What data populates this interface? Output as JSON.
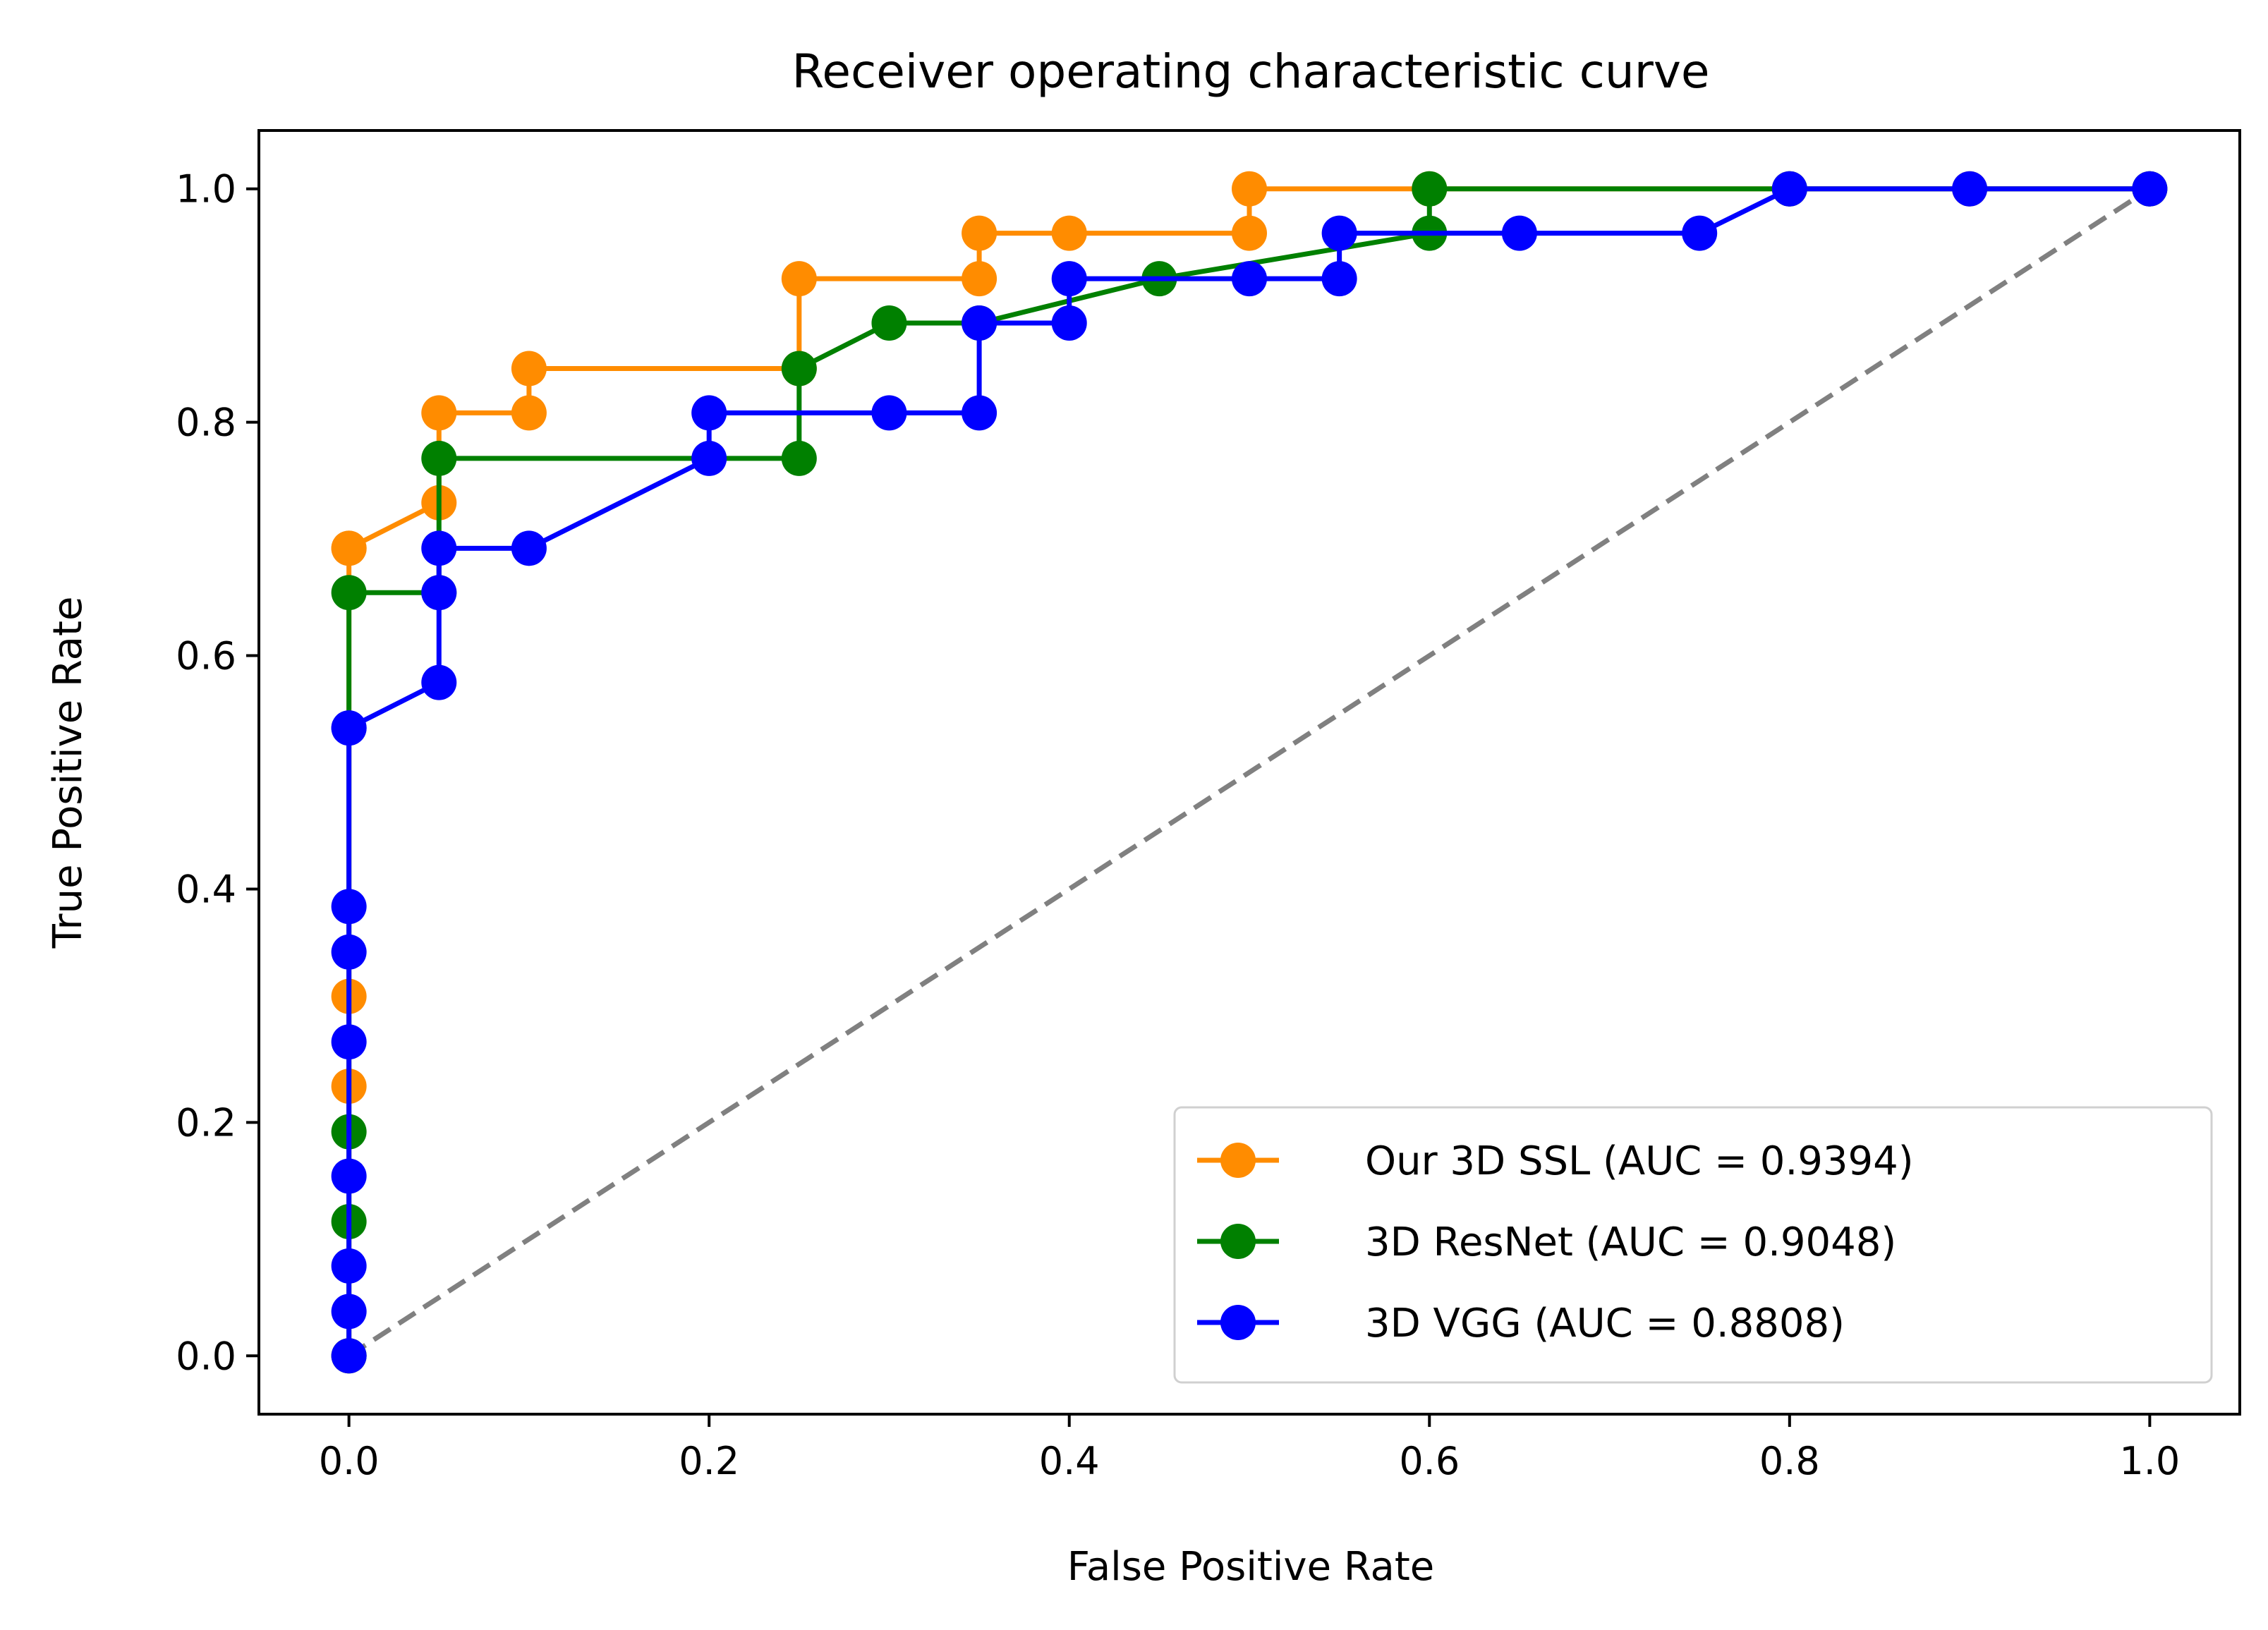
{
  "chart_data": {
    "type": "line",
    "title": "Receiver operating characteristic curve",
    "xlabel": "False Positive Rate",
    "ylabel": "True Positive Rate",
    "xlim": [
      -0.05,
      1.05
    ],
    "ylim": [
      -0.05,
      1.05
    ],
    "xticks": [
      0.0,
      0.2,
      0.4,
      0.6,
      0.8,
      1.0
    ],
    "yticks": [
      0.0,
      0.2,
      0.4,
      0.6,
      0.8,
      1.0
    ],
    "xtick_labels": [
      "0.0",
      "0.2",
      "0.4",
      "0.6",
      "0.8",
      "1.0"
    ],
    "ytick_labels": [
      "0.0",
      "0.2",
      "0.4",
      "0.6",
      "0.8",
      "1.0"
    ],
    "grid": false,
    "legend_position": "bottom-right",
    "diagonal": {
      "x": [
        0,
        1
      ],
      "y": [
        0,
        1
      ],
      "color": "#808080",
      "style": "dashed"
    },
    "series": [
      {
        "name": "Our 3D SSL (AUC = 0.9394)",
        "color": "#ff8c00",
        "x": [
          0,
          0,
          0,
          0,
          0,
          0.05,
          0.05,
          0.1,
          0.1,
          0.25,
          0.25,
          0.35,
          0.35,
          0.4,
          0.5,
          0.5,
          0.6,
          0.8,
          0.9,
          1.0
        ],
        "y": [
          0,
          0.231,
          0.308,
          0.692,
          0.692,
          0.731,
          0.808,
          0.808,
          0.846,
          0.846,
          0.923,
          0.923,
          0.962,
          0.962,
          0.962,
          1.0,
          1.0,
          1.0,
          1.0,
          1.0
        ]
      },
      {
        "name": "3D ResNet (AUC = 0.9048)",
        "color": "#008000",
        "x": [
          0,
          0,
          0,
          0,
          0.05,
          0.05,
          0.25,
          0.25,
          0.3,
          0.35,
          0.45,
          0.6,
          0.6,
          0.8,
          1.0
        ],
        "y": [
          0,
          0.115,
          0.192,
          0.654,
          0.654,
          0.769,
          0.769,
          0.846,
          0.885,
          0.885,
          0.923,
          0.962,
          1.0,
          1.0,
          1.0
        ]
      },
      {
        "name": "3D VGG (AUC = 0.8808)",
        "color": "#0000ff",
        "x": [
          0,
          0,
          0,
          0,
          0,
          0,
          0,
          0,
          0,
          0.05,
          0.05,
          0.05,
          0.1,
          0.2,
          0.2,
          0.3,
          0.35,
          0.35,
          0.4,
          0.4,
          0.5,
          0.55,
          0.55,
          0.65,
          0.75,
          0.8,
          0.9,
          1.0
        ],
        "y": [
          0,
          0.038,
          0.077,
          0.154,
          0.269,
          0.346,
          0.385,
          0.538,
          0.538,
          0.577,
          0.654,
          0.692,
          0.692,
          0.769,
          0.808,
          0.808,
          0.808,
          0.885,
          0.885,
          0.923,
          0.923,
          0.923,
          0.962,
          0.962,
          0.962,
          1.0,
          1.0,
          1.0
        ]
      }
    ]
  }
}
